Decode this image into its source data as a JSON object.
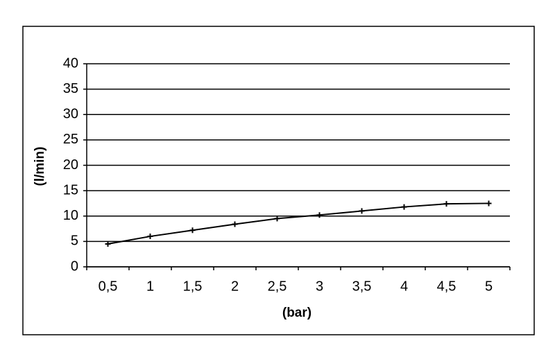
{
  "chart_data": {
    "type": "line",
    "x_label": "(bar)",
    "y_label": "(l/min)",
    "categories": [
      "0,5",
      "1",
      "1,5",
      "2",
      "2,5",
      "3",
      "3,5",
      "4",
      "4,5",
      "5"
    ],
    "values": [
      4.5,
      6,
      7.2,
      8.4,
      9.5,
      10.2,
      11,
      11.8,
      12.4,
      12.5
    ],
    "color": "#000000",
    "ylim": [
      0,
      40
    ],
    "yticks": [
      0,
      5,
      10,
      15,
      20,
      25,
      30,
      35,
      40
    ],
    "grid": true
  }
}
